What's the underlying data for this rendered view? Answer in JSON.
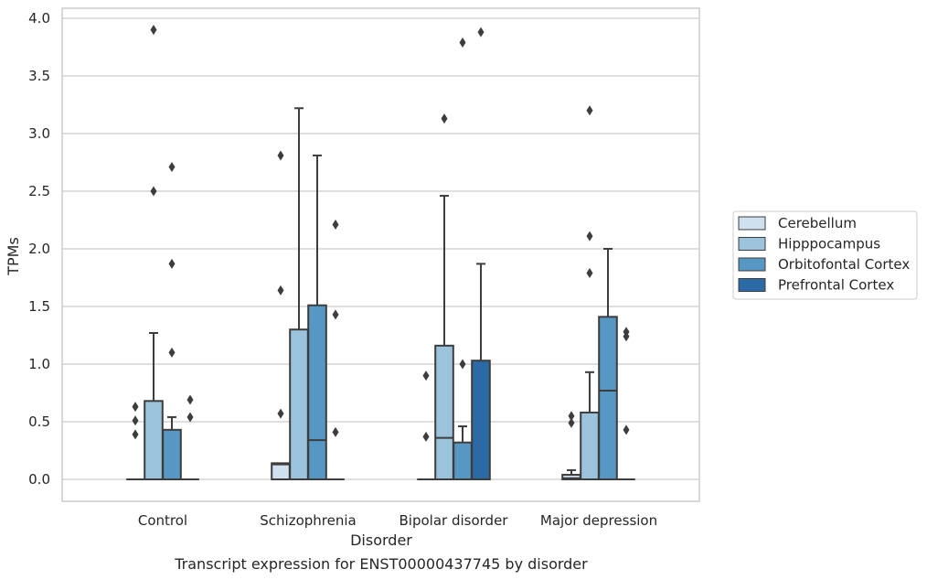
{
  "chart_data": {
    "type": "box",
    "title": "",
    "caption": "Transcript expression for ENST00000437745 by disorder",
    "xlabel": "Disorder",
    "ylabel": "TPMs",
    "ylim": [
      -0.19,
      4.1
    ],
    "yticks": [
      "0.0",
      "0.5",
      "1.0",
      "1.5",
      "2.0",
      "2.5",
      "3.0",
      "3.5",
      "4.0"
    ],
    "grid": "horizontal",
    "legend_position": "right",
    "categories": [
      "Control",
      "Schizophrenia",
      "Bipolar disorder",
      "Major depression"
    ],
    "series": [
      {
        "name": "Cerebellum",
        "color": "#cfe0ef",
        "boxes": [
          {
            "q1": 0,
            "median": 0,
            "q3": 0,
            "whisker_low": 0,
            "whisker_high": 0,
            "outliers": [
              0.63,
              0.51,
              0.39
            ]
          },
          {
            "q1": 0,
            "median": 0.13,
            "q3": 0.14,
            "whisker_low": 0,
            "whisker_high": 0.14,
            "outliers": [
              2.81,
              1.64,
              0.57
            ]
          },
          {
            "q1": 0,
            "median": 0,
            "q3": 0,
            "whisker_low": 0,
            "whisker_high": 0,
            "outliers": [
              0.9,
              0.37
            ]
          },
          {
            "q1": 0,
            "median": 0.01,
            "q3": 0.04,
            "whisker_low": 0,
            "whisker_high": 0.08,
            "outliers": [
              0.55,
              0.49
            ]
          }
        ]
      },
      {
        "name": "Hipppocampus",
        "color": "#9bc3dc",
        "boxes": [
          {
            "q1": 0,
            "median": 0,
            "q3": 0.68,
            "whisker_low": 0,
            "whisker_high": 1.27,
            "outliers": [
              3.9,
              2.5
            ]
          },
          {
            "q1": 0,
            "median": 0,
            "q3": 1.3,
            "whisker_low": 0,
            "whisker_high": 3.22,
            "outliers": []
          },
          {
            "q1": 0,
            "median": 0.36,
            "q3": 1.16,
            "whisker_low": 0,
            "whisker_high": 2.46,
            "outliers": [
              3.13
            ]
          },
          {
            "q1": 0,
            "median": 0,
            "q3": 0.58,
            "whisker_low": 0,
            "whisker_high": 0.93,
            "outliers": [
              3.2,
              2.11,
              1.79
            ]
          }
        ]
      },
      {
        "name": "Orbitofontal Cortex",
        "color": "#5797c4",
        "boxes": [
          {
            "q1": 0,
            "median": 0,
            "q3": 0.43,
            "whisker_low": 0,
            "whisker_high": 0.54,
            "outliers": [
              2.71,
              1.87,
              1.1
            ]
          },
          {
            "q1": 0,
            "median": 0.34,
            "q3": 1.51,
            "whisker_low": 0,
            "whisker_high": 2.81,
            "outliers": []
          },
          {
            "q1": 0,
            "median": 0,
            "q3": 0.32,
            "whisker_low": 0,
            "whisker_high": 0.46,
            "outliers": [
              1.0,
              3.79
            ]
          },
          {
            "q1": 0,
            "median": 0.77,
            "q3": 1.41,
            "whisker_low": 0,
            "whisker_high": 2.0,
            "outliers": []
          }
        ]
      },
      {
        "name": "Prefrontal Cortex",
        "color": "#2b6aa5",
        "boxes": [
          {
            "q1": 0,
            "median": 0,
            "q3": 0,
            "whisker_low": 0,
            "whisker_high": 0,
            "outliers": [
              0.69,
              0.54
            ]
          },
          {
            "q1": 0,
            "median": 0,
            "q3": 0,
            "whisker_low": 0,
            "whisker_high": 0,
            "outliers": [
              2.21,
              1.43,
              0.41
            ]
          },
          {
            "q1": 0,
            "median": 0,
            "q3": 1.03,
            "whisker_low": 0,
            "whisker_high": 1.87,
            "outliers": [
              3.88
            ]
          },
          {
            "q1": 0,
            "median": 0,
            "q3": 0,
            "whisker_low": 0,
            "whisker_high": 0,
            "outliers": [
              1.28,
              1.24,
              0.43
            ]
          }
        ]
      }
    ]
  }
}
